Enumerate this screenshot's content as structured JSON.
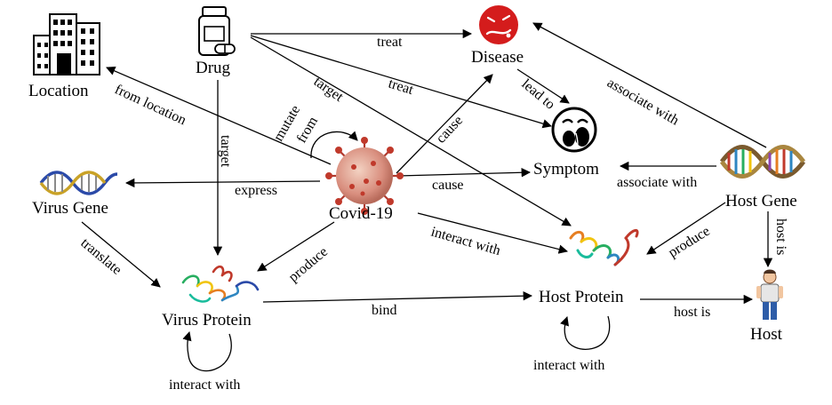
{
  "nodes": {
    "location": "Location",
    "drug": "Drug",
    "disease": "Disease",
    "symptom": "Symptom",
    "host_gene": "Host Gene",
    "virus_gene": "Virus Gene",
    "covid": "Covid-19",
    "host_protein": "Host Protein",
    "virus_protein": "Virus Protein",
    "host": "Host"
  },
  "edges": {
    "drug_disease": "treat",
    "drug_symptom": "treat",
    "drug_host_protein": "target",
    "drug_virus_protein": "target",
    "covid_location": "from location",
    "covid_self_1": "mutate",
    "covid_self_2": "from",
    "covid_disease": "cause",
    "covid_symptom": "cause",
    "covid_virus_gene": "express",
    "covid_host_protein": "interact with",
    "covid_virus_protein": "produce",
    "disease_symptom": "lead to",
    "host_gene_disease": "associate with",
    "host_gene_symptom": "associate with",
    "host_gene_host_protein": "produce",
    "host_gene_host": "host is",
    "virus_gene_virus_protein": "translate",
    "virus_protein_host_protein": "bind",
    "virus_protein_self": "interact with",
    "host_protein_host": "host is",
    "host_protein_self": "interact with"
  },
  "icons": {
    "location": "building-icon",
    "drug": "pill-bottle-icon",
    "disease": "sick-face-icon",
    "symptom": "crying-face-icon",
    "host_gene": "dna-icon",
    "virus_gene": "dna-strand-icon",
    "covid": "coronavirus-icon",
    "host_protein": "protein-structure-icon",
    "virus_protein": "protein-structure-icon",
    "host": "person-icon"
  },
  "colors": {
    "disease_red": "#d41c1c",
    "virus_red": "#c0392b"
  }
}
